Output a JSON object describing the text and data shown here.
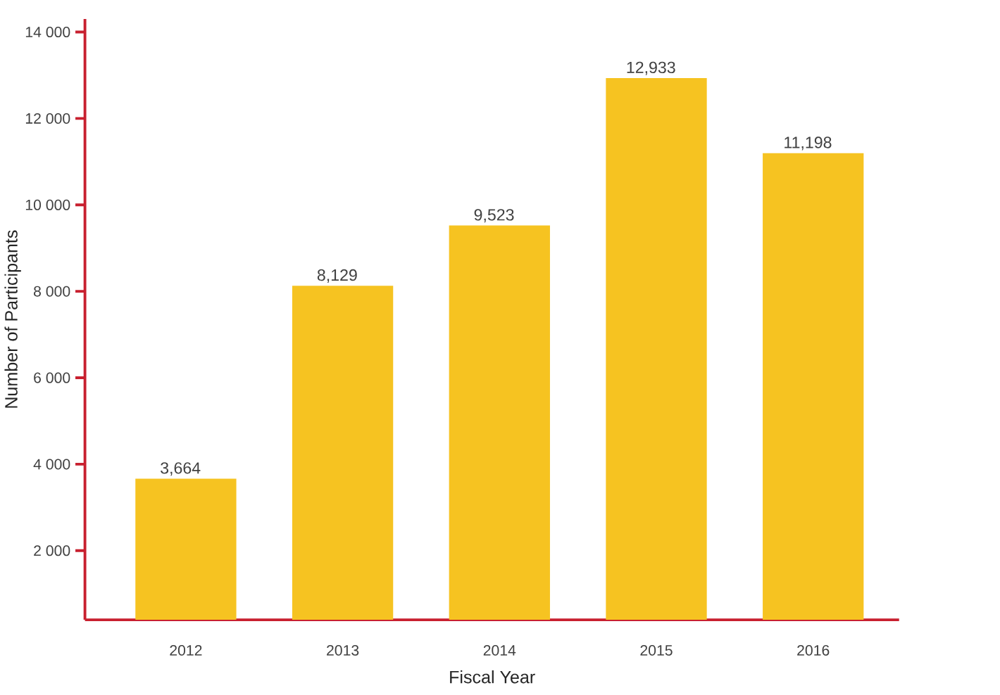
{
  "chart_data": {
    "type": "bar",
    "xlabel": "Fiscal Year",
    "ylabel": "Number of Participants",
    "categories": [
      "2012",
      "2013",
      "2014",
      "2015",
      "2016"
    ],
    "values": [
      3664,
      8129,
      9523,
      12933,
      11198
    ],
    "value_labels": [
      "3,664",
      "8,129",
      "9,523",
      "12,933",
      "11,198"
    ],
    "color": "#f6c321",
    "ylim": [
      400,
      14300
    ],
    "yticks": [
      {
        "value": 2000,
        "label": "2 000"
      },
      {
        "value": 4000,
        "label": "4 000"
      },
      {
        "value": 6000,
        "label": "6 000"
      },
      {
        "value": 8000,
        "label": "8 000"
      },
      {
        "value": 10000,
        "label": "10 000"
      },
      {
        "value": 12000,
        "label": "12 000"
      },
      {
        "value": 14000,
        "label": "14 000"
      }
    ]
  }
}
